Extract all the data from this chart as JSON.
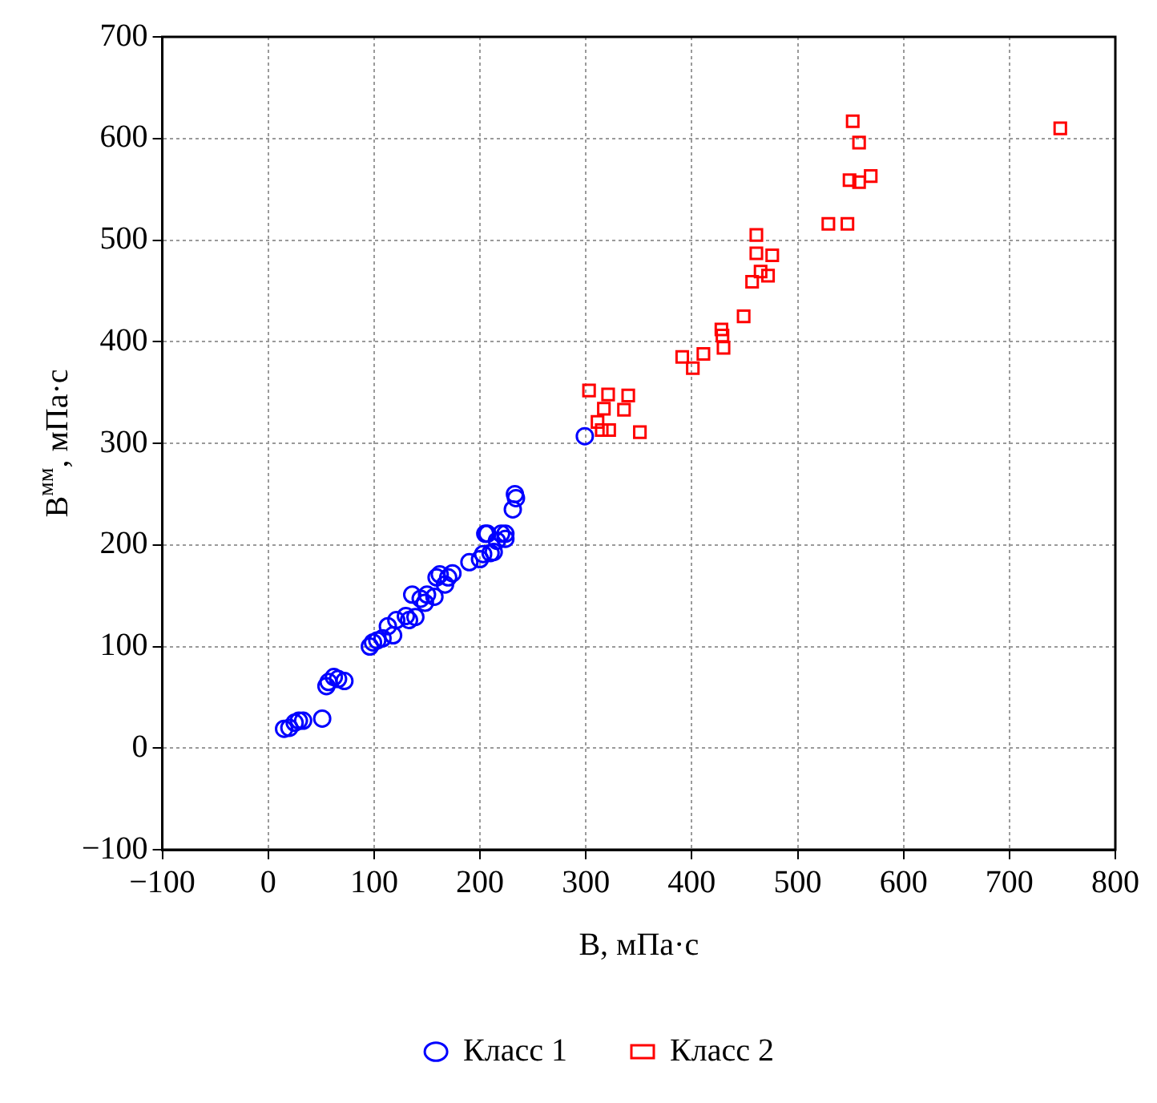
{
  "chart_data": {
    "type": "scatter",
    "xlabel": "B, мПа·с",
    "ylabel": "B$^{мм}$, мПа·с",
    "xlim": [
      -100,
      800
    ],
    "ylim": [
      -100,
      700
    ],
    "xticks": [
      -100,
      0,
      100,
      200,
      300,
      400,
      500,
      600,
      700,
      800
    ],
    "yticks": [
      -100,
      0,
      100,
      200,
      300,
      400,
      500,
      600,
      700
    ],
    "grid": true,
    "legend": "bottom",
    "series": [
      {
        "name": "Класс 1",
        "color": "#0000ff",
        "marker": "circle",
        "x": [
          15,
          20,
          25,
          29,
          33,
          51,
          55,
          57,
          62,
          66,
          72,
          96,
          99,
          103,
          108,
          113,
          118,
          121,
          125,
          130,
          133,
          136,
          139,
          144,
          148,
          150,
          157,
          159,
          162,
          167,
          170,
          174,
          190,
          200,
          203,
          205,
          207,
          210,
          213,
          216,
          220,
          224,
          224,
          231,
          233,
          234,
          299
        ],
        "values": [
          19,
          20,
          25,
          27,
          27,
          29,
          61,
          65,
          70,
          68,
          66,
          100,
          104,
          106,
          108,
          120,
          111,
          126,
          null,
          130,
          126,
          151,
          129,
          147,
          143,
          151,
          149,
          168,
          171,
          161,
          168,
          172,
          183,
          186,
          191,
          211,
          211,
          192,
          193,
          204,
          211,
          206,
          211,
          235,
          250,
          246,
          307
        ]
      },
      {
        "name": "Класс 2",
        "color": "#ff0000",
        "marker": "square",
        "x": [
          303,
          311,
          315,
          317,
          321,
          322,
          336,
          340,
          351,
          391,
          401,
          411,
          428,
          429,
          430,
          449,
          457,
          461,
          461,
          465,
          472,
          476,
          529,
          547,
          549,
          558,
          552,
          558,
          569,
          748
        ],
        "values": [
          352,
          321,
          313,
          334,
          348,
          313,
          333,
          347,
          311,
          385,
          374,
          388,
          412,
          406,
          394,
          425,
          459,
          505,
          487,
          469,
          465,
          485,
          516,
          516,
          559,
          557,
          617,
          596,
          563,
          610
        ]
      }
    ]
  }
}
